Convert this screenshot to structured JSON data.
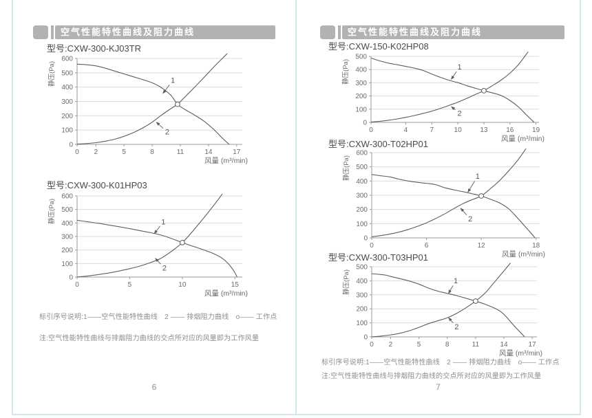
{
  "colors": {
    "header_bar": "#b2b2b2",
    "header_text": "#ffffff",
    "guide_line": "#cde9eb",
    "grid_line": "#dcdcdc",
    "axis_line": "#9a9a9a",
    "curve": "#5c5c5c",
    "model_text": "#4a4a4a",
    "muted_text": "#8d8d8d"
  },
  "pages": [
    {
      "header": "空气性能特性曲线及阻力曲线",
      "legend": "标引序号说明:1——空气性能特性曲线　2 —— 排烟阻力曲线　o—— 工作点",
      "note": "注:空气性能特性曲线与排烟阻力曲线的交点所对应的风量即为工作风量",
      "page_number": "6"
    },
    {
      "header": "空气性能特性曲线及阻力曲线",
      "legend": "标引序号说明:1——空气性能特性曲线　2 —— 排烟阻力曲线　o—— 工作点",
      "note": "注:空气性能特性曲线与排烟阻力曲线的交点所对应的风量即为工作风量",
      "page_number": "7"
    }
  ],
  "chart_data": [
    {
      "type": "line",
      "title": "型号:CXW-300-KJ03TR",
      "ylabel": "静压(Pa)",
      "xlabel": "风量 (m³/min)",
      "ylim": [
        0,
        600
      ],
      "ytick_step": 100,
      "xticks": [
        0,
        2,
        5,
        8,
        11,
        14,
        17
      ],
      "xlim": [
        0,
        17.6
      ],
      "grid": "horizontal",
      "series": [
        {
          "name": "空气性能特性曲线",
          "label": "1",
          "points": [
            [
              0,
              560
            ],
            [
              1,
              556
            ],
            [
              2,
              548
            ],
            [
              3,
              532
            ],
            [
              4,
              512
            ],
            [
              5,
              492
            ],
            [
              6,
              472
            ],
            [
              7,
              452
            ],
            [
              8,
              430
            ],
            [
              9,
              395
            ],
            [
              10,
              342
            ],
            [
              10.7,
              280
            ],
            [
              11.5,
              243
            ],
            [
              12.5,
              205
            ],
            [
              13.5,
              163
            ],
            [
              14.5,
              108
            ],
            [
              15.5,
              42
            ],
            [
              16.2,
              0
            ]
          ]
        },
        {
          "name": "排烟阻力曲线",
          "label": "2",
          "points": [
            [
              0,
              2
            ],
            [
              1,
              6
            ],
            [
              2,
              12
            ],
            [
              3,
              22
            ],
            [
              4,
              36
            ],
            [
              5,
              56
            ],
            [
              6,
              82
            ],
            [
              7,
              115
            ],
            [
              8,
              155
            ],
            [
              9,
              205
            ],
            [
              10,
              250
            ],
            [
              10.7,
              280
            ],
            [
              11.5,
              332
            ],
            [
              12.5,
              398
            ],
            [
              13.5,
              466
            ],
            [
              14.5,
              536
            ],
            [
              15.5,
              602
            ],
            [
              16,
              634
            ]
          ]
        }
      ],
      "work_point": {
        "name": "工作点",
        "x": 10.7,
        "y": 280
      },
      "annotations": [
        {
          "text": "1",
          "x": 10.2,
          "y": 446,
          "tip_x": 9.1,
          "tip_y": 352
        },
        {
          "text": "2",
          "x": 9.6,
          "y": 86,
          "tip_x": 8.4,
          "tip_y": 158
        }
      ]
    },
    {
      "type": "line",
      "title": "型号:CXW-300-K01HP03",
      "ylabel": "静压(Pa)",
      "xlabel": "风量 (m³/min)",
      "ylim": [
        0,
        600
      ],
      "ytick_step": 100,
      "xticks": [
        0,
        5,
        10,
        15
      ],
      "xlim": [
        0,
        15.7
      ],
      "grid": "horizontal",
      "series": [
        {
          "name": "空气性能特性曲线",
          "label": "1",
          "points": [
            [
              0,
              420
            ],
            [
              1,
              409
            ],
            [
              2,
              398
            ],
            [
              3,
              385
            ],
            [
              4,
              372
            ],
            [
              5,
              358
            ],
            [
              6,
              343
            ],
            [
              7,
              328
            ],
            [
              8,
              310
            ],
            [
              9,
              284
            ],
            [
              10,
              255
            ],
            [
              11,
              228
            ],
            [
              12,
              202
            ],
            [
              13,
              172
            ],
            [
              13.8,
              138
            ],
            [
              14.4,
              96
            ],
            [
              14.9,
              45
            ],
            [
              15.2,
              0
            ]
          ]
        },
        {
          "name": "排烟阻力曲线",
          "label": "2",
          "points": [
            [
              0,
              0
            ],
            [
              1,
              8
            ],
            [
              2,
              18
            ],
            [
              3,
              30
            ],
            [
              4,
              45
            ],
            [
              5,
              62
            ],
            [
              6,
              82
            ],
            [
              7,
              108
            ],
            [
              8,
              140
            ],
            [
              9,
              192
            ],
            [
              10,
              255
            ],
            [
              10.8,
              322
            ],
            [
              11.6,
              396
            ],
            [
              12.5,
              482
            ],
            [
              13.3,
              562
            ],
            [
              13.8,
              615
            ]
          ]
        }
      ],
      "work_point": {
        "name": "工作点",
        "x": 10,
        "y": 255
      },
      "annotations": [
        {
          "text": "1",
          "x": 8.2,
          "y": 408,
          "tip_x": 7.3,
          "tip_y": 318
        },
        {
          "text": "2",
          "x": 8.3,
          "y": 66,
          "tip_x": 7.4,
          "tip_y": 142
        }
      ]
    },
    {
      "type": "line",
      "title": "型号:CXW-150-K02HP08",
      "ylabel": "静压(Pa)",
      "xlabel": "风量 (m³/min)",
      "ylim": [
        0,
        500
      ],
      "ytick_step": 100,
      "xticks": [
        0,
        4,
        7,
        10,
        13,
        16,
        19
      ],
      "xlim": [
        0,
        19.35
      ],
      "grid": "horizontal",
      "series": [
        {
          "name": "空气性能特性曲线",
          "label": "1",
          "points": [
            [
              0,
              487
            ],
            [
              1,
              466
            ],
            [
              2,
              449
            ],
            [
              3,
              437
            ],
            [
              4,
              424
            ],
            [
              5,
              411
            ],
            [
              6,
              393
            ],
            [
              7,
              366
            ],
            [
              8,
              341
            ],
            [
              9,
              319
            ],
            [
              10,
              301
            ],
            [
              11,
              279
            ],
            [
              12,
              259
            ],
            [
              13,
              240
            ],
            [
              14,
              223
            ],
            [
              15,
              203
            ],
            [
              16,
              166
            ],
            [
              17,
              116
            ],
            [
              18,
              50
            ],
            [
              18.8,
              0
            ]
          ]
        },
        {
          "name": "排烟阻力曲线",
          "label": "2",
          "points": [
            [
              0,
              3
            ],
            [
              1,
              8
            ],
            [
              2,
              16
            ],
            [
              3,
              26
            ],
            [
              4,
              38
            ],
            [
              5,
              52
            ],
            [
              6,
              68
            ],
            [
              7,
              85
            ],
            [
              8,
              106
            ],
            [
              9,
              129
            ],
            [
              10,
              153
            ],
            [
              11,
              181
            ],
            [
              12,
              211
            ],
            [
              13,
              240
            ],
            [
              14,
              279
            ],
            [
              15,
              321
            ],
            [
              16,
              373
            ],
            [
              17,
              439
            ],
            [
              18.1,
              535
            ]
          ]
        }
      ],
      "work_point": {
        "name": "工作点",
        "x": 13,
        "y": 240
      },
      "annotations": [
        {
          "text": "1",
          "x": 10.2,
          "y": 420,
          "tip_x": 9.2,
          "tip_y": 322
        },
        {
          "text": "2",
          "x": 10.2,
          "y": 68,
          "tip_x": 9.2,
          "tip_y": 122
        }
      ]
    },
    {
      "type": "line",
      "title": "型号:CXW-300-T02HP01",
      "ylabel": "静压(Pa)",
      "xlabel": "风量 (m³/min)",
      "ylim": [
        0,
        600
      ],
      "ytick_step": 100,
      "xticks": [
        0,
        6,
        12,
        18
      ],
      "xlim": [
        0,
        18.4
      ],
      "grid": "horizontal",
      "series": [
        {
          "name": "空气性能特性曲线",
          "label": "1",
          "points": [
            [
              0,
              446
            ],
            [
              1,
              437
            ],
            [
              2,
              429
            ],
            [
              3,
              413
            ],
            [
              4,
              400
            ],
            [
              5,
              391
            ],
            [
              6,
              384
            ],
            [
              7,
              375
            ],
            [
              8,
              353
            ],
            [
              9,
              338
            ],
            [
              10,
              325
            ],
            [
              11,
              311
            ],
            [
              12,
              295
            ],
            [
              13,
              272
            ],
            [
              14,
              246
            ],
            [
              15,
              205
            ],
            [
              16,
              138
            ],
            [
              17,
              66
            ],
            [
              17.9,
              0
            ]
          ]
        },
        {
          "name": "排烟阻力曲线",
          "label": "2",
          "points": [
            [
              0,
              8
            ],
            [
              1,
              16
            ],
            [
              2,
              27
            ],
            [
              3,
              41
            ],
            [
              4,
              59
            ],
            [
              5,
              81
            ],
            [
              6,
              106
            ],
            [
              7,
              136
            ],
            [
              8,
              169
            ],
            [
              9,
              206
            ],
            [
              10,
              241
            ],
            [
              11,
              269
            ],
            [
              12,
              295
            ],
            [
              13,
              346
            ],
            [
              14,
              403
            ],
            [
              15,
              471
            ],
            [
              16,
              547
            ],
            [
              16.9,
              628
            ]
          ]
        }
      ],
      "work_point": {
        "name": "工作点",
        "x": 12,
        "y": 295
      },
      "annotations": [
        {
          "text": "1",
          "x": 11.6,
          "y": 432,
          "tip_x": 10.5,
          "tip_y": 318
        },
        {
          "text": "2",
          "x": 10.8,
          "y": 132,
          "tip_x": 9.7,
          "tip_y": 212
        }
      ]
    },
    {
      "type": "line",
      "title": "型号:CXW-300-T03HP01",
      "ylabel": "静压(Pa)",
      "xlabel": "风量 (m³/min)",
      "ylim": [
        0,
        500
      ],
      "ytick_step": 100,
      "xticks": [
        0,
        2,
        5,
        8,
        11,
        14,
        17
      ],
      "xlim": [
        0,
        17.5
      ],
      "grid": "horizontal",
      "series": [
        {
          "name": "空气性能特性曲线",
          "label": "1",
          "points": [
            [
              0,
              450
            ],
            [
              0.8,
              446
            ],
            [
              1.5,
              440
            ],
            [
              2,
              431
            ],
            [
              3,
              415
            ],
            [
              4,
              398
            ],
            [
              5,
              376
            ],
            [
              6,
              348
            ],
            [
              7,
              326
            ],
            [
              8,
              310
            ],
            [
              9,
              294
            ],
            [
              10,
              275
            ],
            [
              11,
              255
            ],
            [
              12,
              233
            ],
            [
              13,
              205
            ],
            [
              13.7,
              178
            ],
            [
              14.3,
              140
            ],
            [
              15,
              85
            ],
            [
              15.7,
              35
            ],
            [
              16.2,
              0
            ]
          ]
        },
        {
          "name": "排烟阻力曲线",
          "label": "2",
          "points": [
            [
              0,
              0
            ],
            [
              1,
              6
            ],
            [
              2,
              14
            ],
            [
              3,
              26
            ],
            [
              4,
              44
            ],
            [
              5,
              68
            ],
            [
              6,
              94
            ],
            [
              7,
              115
            ],
            [
              8,
              136
            ],
            [
              9,
              168
            ],
            [
              10,
              208
            ],
            [
              11,
              255
            ],
            [
              12,
              312
            ],
            [
              13,
              390
            ],
            [
              14,
              470
            ],
            [
              14.7,
              527
            ]
          ]
        }
      ],
      "work_point": {
        "name": "工作点",
        "x": 11,
        "y": 255
      },
      "annotations": [
        {
          "text": "1",
          "x": 8.9,
          "y": 400,
          "tip_x": 8.1,
          "tip_y": 306
        },
        {
          "text": "2",
          "x": 9.0,
          "y": 70,
          "tip_x": 8.1,
          "tip_y": 140
        }
      ]
    }
  ]
}
